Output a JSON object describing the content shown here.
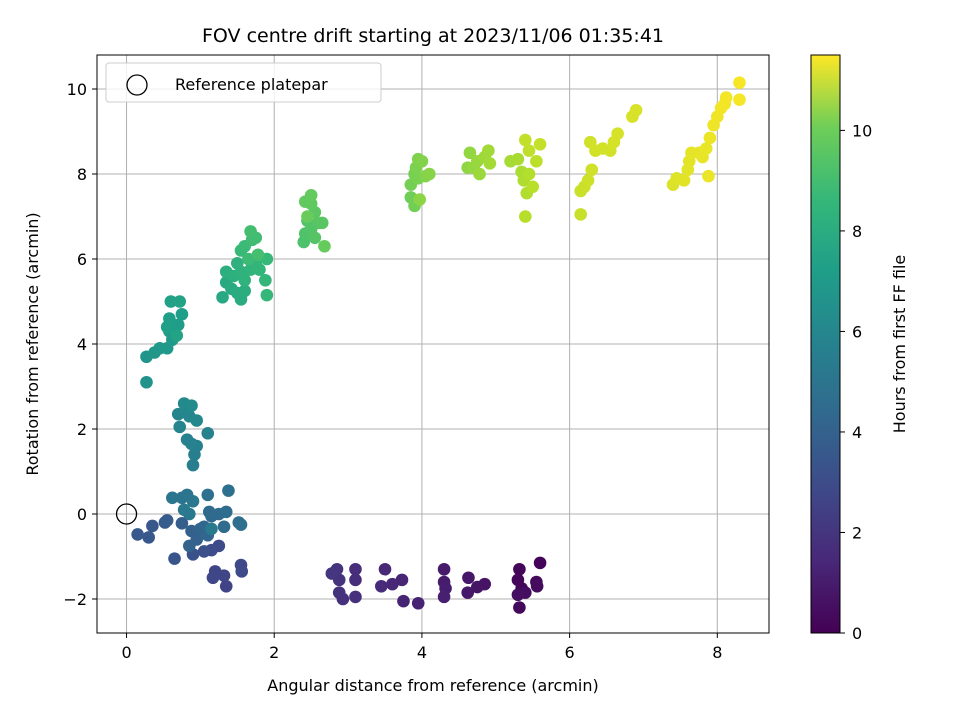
{
  "chart_data": {
    "type": "scatter",
    "title": "FOV centre drift starting at 2023/11/06 01:35:41",
    "xlabel": "Angular distance from reference (arcmin)",
    "ylabel": "Rotation from reference (arcmin)",
    "xlim": [
      -0.4,
      8.7
    ],
    "ylim": [
      -2.8,
      10.8
    ],
    "xticks": [
      0,
      2,
      4,
      6,
      8
    ],
    "yticks": [
      -2,
      0,
      2,
      4,
      6,
      8,
      10
    ],
    "grid": true,
    "legend": {
      "location": "upper-left",
      "entries": [
        "Reference platepar"
      ]
    },
    "reference_point": {
      "x": 0,
      "y": 0
    },
    "colorbar": {
      "label": "Hours from first FF file",
      "colormap": "viridis",
      "range": [
        0,
        11.5
      ],
      "ticks": [
        0,
        2,
        4,
        6,
        8,
        10
      ]
    },
    "points": [
      {
        "x": 5.6,
        "y": -1.15,
        "c": 0.1
      },
      {
        "x": 5.32,
        "y": -1.3,
        "c": 0.15
      },
      {
        "x": 5.3,
        "y": -1.55,
        "c": 0.2
      },
      {
        "x": 5.35,
        "y": -1.75,
        "c": 0.2
      },
      {
        "x": 5.32,
        "y": -2.2,
        "c": 0.25
      },
      {
        "x": 5.55,
        "y": -1.6,
        "c": 0.3
      },
      {
        "x": 5.56,
        "y": -1.7,
        "c": 0.35
      },
      {
        "x": 5.4,
        "y": -1.85,
        "c": 0.4
      },
      {
        "x": 5.3,
        "y": -1.9,
        "c": 0.45
      },
      {
        "x": 4.85,
        "y": -1.65,
        "c": 0.6
      },
      {
        "x": 4.75,
        "y": -1.72,
        "c": 0.65
      },
      {
        "x": 4.63,
        "y": -1.5,
        "c": 0.7
      },
      {
        "x": 4.62,
        "y": -1.85,
        "c": 0.75
      },
      {
        "x": 4.3,
        "y": -1.3,
        "c": 0.85
      },
      {
        "x": 4.3,
        "y": -1.6,
        "c": 0.9
      },
      {
        "x": 4.32,
        "y": -1.75,
        "c": 0.95
      },
      {
        "x": 4.3,
        "y": -1.95,
        "c": 1.0
      },
      {
        "x": 3.95,
        "y": -2.1,
        "c": 1.1
      },
      {
        "x": 3.75,
        "y": -2.05,
        "c": 1.15
      },
      {
        "x": 3.73,
        "y": -1.55,
        "c": 1.2
      },
      {
        "x": 3.6,
        "y": -1.65,
        "c": 1.25
      },
      {
        "x": 3.5,
        "y": -1.3,
        "c": 1.3
      },
      {
        "x": 3.45,
        "y": -1.7,
        "c": 1.35
      },
      {
        "x": 3.1,
        "y": -1.3,
        "c": 1.45
      },
      {
        "x": 3.1,
        "y": -1.55,
        "c": 1.5
      },
      {
        "x": 3.1,
        "y": -1.95,
        "c": 1.55
      },
      {
        "x": 2.93,
        "y": -2.0,
        "c": 1.6
      },
      {
        "x": 2.88,
        "y": -1.85,
        "c": 1.65
      },
      {
        "x": 2.88,
        "y": -1.55,
        "c": 1.7
      },
      {
        "x": 2.85,
        "y": -1.3,
        "c": 1.75
      },
      {
        "x": 2.78,
        "y": -1.4,
        "c": 1.8
      },
      {
        "x": 1.35,
        "y": -1.7,
        "c": 2.3
      },
      {
        "x": 1.32,
        "y": -1.45,
        "c": 2.35
      },
      {
        "x": 1.2,
        "y": -1.35,
        "c": 2.4
      },
      {
        "x": 1.17,
        "y": -1.5,
        "c": 2.45
      },
      {
        "x": 1.55,
        "y": -1.2,
        "c": 2.5
      },
      {
        "x": 1.56,
        "y": -1.35,
        "c": 2.55
      },
      {
        "x": 1.25,
        "y": -0.75,
        "c": 2.6
      },
      {
        "x": 1.15,
        "y": -0.85,
        "c": 2.7
      },
      {
        "x": 1.05,
        "y": -0.88,
        "c": 2.8
      },
      {
        "x": 0.9,
        "y": -0.95,
        "c": 2.9
      },
      {
        "x": 0.65,
        "y": -1.05,
        "c": 3.0
      },
      {
        "x": 0.35,
        "y": -0.28,
        "c": 3.1
      },
      {
        "x": 0.3,
        "y": -0.55,
        "c": 3.15
      },
      {
        "x": 0.15,
        "y": -0.48,
        "c": 3.2
      },
      {
        "x": 0.52,
        "y": -0.2,
        "c": 3.3
      },
      {
        "x": 0.55,
        "y": -0.15,
        "c": 3.35
      },
      {
        "x": 0.75,
        "y": -0.22,
        "c": 3.4
      },
      {
        "x": 0.88,
        "y": -0.4,
        "c": 3.5
      },
      {
        "x": 0.95,
        "y": -0.6,
        "c": 3.55
      },
      {
        "x": 0.85,
        "y": -0.75,
        "c": 3.6
      },
      {
        "x": 1.0,
        "y": -0.35,
        "c": 3.7
      },
      {
        "x": 1.1,
        "y": -0.5,
        "c": 3.75
      },
      {
        "x": 1.05,
        "y": -0.3,
        "c": 3.8
      },
      {
        "x": 1.15,
        "y": -0.05,
        "c": 3.9
      },
      {
        "x": 1.25,
        "y": 0.0,
        "c": 3.95
      },
      {
        "x": 1.12,
        "y": 0.05,
        "c": 4.0
      },
      {
        "x": 1.32,
        "y": -0.3,
        "c": 4.05
      },
      {
        "x": 1.35,
        "y": 0.05,
        "c": 4.1
      },
      {
        "x": 1.52,
        "y": -0.2,
        "c": 4.15
      },
      {
        "x": 1.55,
        "y": -0.25,
        "c": 4.2
      },
      {
        "x": 1.38,
        "y": 0.55,
        "c": 4.25
      },
      {
        "x": 1.1,
        "y": 0.45,
        "c": 4.3
      },
      {
        "x": 0.82,
        "y": 0.45,
        "c": 4.4
      },
      {
        "x": 0.75,
        "y": 0.38,
        "c": 4.45
      },
      {
        "x": 0.62,
        "y": 0.38,
        "c": 4.5
      },
      {
        "x": 0.9,
        "y": 0.3,
        "c": 4.55
      },
      {
        "x": 0.85,
        "y": 0.0,
        "c": 4.6
      },
      {
        "x": 0.78,
        "y": 0.1,
        "c": 4.65
      },
      {
        "x": 1.15,
        "y": -0.35,
        "c": 4.7
      },
      {
        "x": 0.9,
        "y": 1.15,
        "c": 4.9
      },
      {
        "x": 0.92,
        "y": 1.4,
        "c": 4.95
      },
      {
        "x": 0.95,
        "y": 1.6,
        "c": 5.0
      },
      {
        "x": 0.82,
        "y": 1.75,
        "c": 5.05
      },
      {
        "x": 0.88,
        "y": 1.65,
        "c": 5.1
      },
      {
        "x": 1.1,
        "y": 1.9,
        "c": 5.15
      },
      {
        "x": 0.72,
        "y": 2.05,
        "c": 5.2
      },
      {
        "x": 0.7,
        "y": 2.35,
        "c": 5.25
      },
      {
        "x": 0.8,
        "y": 2.4,
        "c": 5.3
      },
      {
        "x": 0.85,
        "y": 2.3,
        "c": 5.35
      },
      {
        "x": 0.95,
        "y": 2.2,
        "c": 5.4
      },
      {
        "x": 0.78,
        "y": 2.6,
        "c": 5.45
      },
      {
        "x": 0.88,
        "y": 2.55,
        "c": 5.5
      },
      {
        "x": 0.27,
        "y": 3.1,
        "c": 5.9
      },
      {
        "x": 0.27,
        "y": 3.7,
        "c": 6.0
      },
      {
        "x": 0.38,
        "y": 3.8,
        "c": 6.05
      },
      {
        "x": 0.45,
        "y": 3.9,
        "c": 6.1
      },
      {
        "x": 0.55,
        "y": 3.9,
        "c": 6.15
      },
      {
        "x": 0.62,
        "y": 4.1,
        "c": 6.2
      },
      {
        "x": 0.58,
        "y": 4.3,
        "c": 6.25
      },
      {
        "x": 0.65,
        "y": 4.35,
        "c": 6.3
      },
      {
        "x": 0.7,
        "y": 4.45,
        "c": 6.35
      },
      {
        "x": 0.75,
        "y": 4.7,
        "c": 6.4
      },
      {
        "x": 0.58,
        "y": 4.6,
        "c": 6.45
      },
      {
        "x": 0.55,
        "y": 4.4,
        "c": 6.5
      },
      {
        "x": 0.6,
        "y": 5.0,
        "c": 6.55
      },
      {
        "x": 0.72,
        "y": 5.0,
        "c": 6.6
      },
      {
        "x": 0.68,
        "y": 4.2,
        "c": 6.65
      },
      {
        "x": 1.3,
        "y": 5.1,
        "c": 6.9
      },
      {
        "x": 1.35,
        "y": 5.45,
        "c": 6.95
      },
      {
        "x": 1.42,
        "y": 5.3,
        "c": 7.0
      },
      {
        "x": 1.5,
        "y": 5.2,
        "c": 7.05
      },
      {
        "x": 1.55,
        "y": 5.05,
        "c": 7.1
      },
      {
        "x": 1.6,
        "y": 5.25,
        "c": 7.15
      },
      {
        "x": 1.35,
        "y": 5.7,
        "c": 7.2
      },
      {
        "x": 1.45,
        "y": 5.6,
        "c": 7.25
      },
      {
        "x": 1.5,
        "y": 5.9,
        "c": 7.3
      },
      {
        "x": 1.55,
        "y": 5.7,
        "c": 7.35
      },
      {
        "x": 1.6,
        "y": 5.5,
        "c": 7.4
      },
      {
        "x": 1.68,
        "y": 5.75,
        "c": 7.45
      },
      {
        "x": 1.75,
        "y": 5.9,
        "c": 7.5
      },
      {
        "x": 1.8,
        "y": 5.75,
        "c": 7.55
      },
      {
        "x": 1.88,
        "y": 5.5,
        "c": 7.6
      },
      {
        "x": 1.9,
        "y": 5.15,
        "c": 7.65
      },
      {
        "x": 1.9,
        "y": 6.0,
        "c": 7.7
      },
      {
        "x": 1.55,
        "y": 6.2,
        "c": 7.75
      },
      {
        "x": 1.6,
        "y": 6.3,
        "c": 7.8
      },
      {
        "x": 1.65,
        "y": 6.0,
        "c": 7.85
      },
      {
        "x": 1.7,
        "y": 6.45,
        "c": 7.9
      },
      {
        "x": 1.75,
        "y": 6.5,
        "c": 7.95
      },
      {
        "x": 1.68,
        "y": 6.65,
        "c": 8.0
      },
      {
        "x": 1.78,
        "y": 6.1,
        "c": 8.05
      },
      {
        "x": 2.4,
        "y": 6.4,
        "c": 8.2
      },
      {
        "x": 2.42,
        "y": 6.6,
        "c": 8.25
      },
      {
        "x": 2.45,
        "y": 6.9,
        "c": 8.3
      },
      {
        "x": 2.5,
        "y": 6.7,
        "c": 8.35
      },
      {
        "x": 2.55,
        "y": 6.5,
        "c": 8.4
      },
      {
        "x": 2.6,
        "y": 6.85,
        "c": 8.45
      },
      {
        "x": 2.65,
        "y": 6.85,
        "c": 8.5
      },
      {
        "x": 2.55,
        "y": 7.1,
        "c": 8.55
      },
      {
        "x": 2.5,
        "y": 7.3,
        "c": 8.6
      },
      {
        "x": 2.42,
        "y": 7.35,
        "c": 8.65
      },
      {
        "x": 2.5,
        "y": 7.5,
        "c": 8.7
      },
      {
        "x": 2.68,
        "y": 6.3,
        "c": 8.75
      },
      {
        "x": 2.45,
        "y": 7.0,
        "c": 8.8
      },
      {
        "x": 3.85,
        "y": 7.45,
        "c": 8.95
      },
      {
        "x": 3.9,
        "y": 7.25,
        "c": 9.0
      },
      {
        "x": 3.85,
        "y": 7.75,
        "c": 9.05
      },
      {
        "x": 3.9,
        "y": 8.0,
        "c": 9.1
      },
      {
        "x": 3.95,
        "y": 7.9,
        "c": 9.15
      },
      {
        "x": 3.92,
        "y": 8.15,
        "c": 9.2
      },
      {
        "x": 3.95,
        "y": 8.35,
        "c": 9.25
      },
      {
        "x": 4.0,
        "y": 8.3,
        "c": 9.3
      },
      {
        "x": 4.05,
        "y": 7.95,
        "c": 9.35
      },
      {
        "x": 4.1,
        "y": 8.0,
        "c": 9.4
      },
      {
        "x": 3.97,
        "y": 7.4,
        "c": 9.45
      },
      {
        "x": 4.62,
        "y": 8.15,
        "c": 9.55
      },
      {
        "x": 4.65,
        "y": 8.5,
        "c": 9.6
      },
      {
        "x": 4.7,
        "y": 8.15,
        "c": 9.65
      },
      {
        "x": 4.75,
        "y": 8.3,
        "c": 9.7
      },
      {
        "x": 4.78,
        "y": 8.0,
        "c": 9.75
      },
      {
        "x": 4.85,
        "y": 8.4,
        "c": 9.8
      },
      {
        "x": 4.9,
        "y": 8.55,
        "c": 9.85
      },
      {
        "x": 4.92,
        "y": 8.25,
        "c": 9.9
      },
      {
        "x": 5.2,
        "y": 8.3,
        "c": 9.95
      },
      {
        "x": 5.3,
        "y": 8.35,
        "c": 10.0
      },
      {
        "x": 5.35,
        "y": 8.05,
        "c": 10.05
      },
      {
        "x": 5.38,
        "y": 7.85,
        "c": 10.1
      },
      {
        "x": 5.42,
        "y": 7.55,
        "c": 10.15
      },
      {
        "x": 5.45,
        "y": 8.0,
        "c": 10.2
      },
      {
        "x": 5.4,
        "y": 7.0,
        "c": 10.25
      },
      {
        "x": 5.5,
        "y": 7.7,
        "c": 10.3
      },
      {
        "x": 5.55,
        "y": 8.3,
        "c": 10.35
      },
      {
        "x": 5.45,
        "y": 8.55,
        "c": 10.4
      },
      {
        "x": 5.4,
        "y": 8.8,
        "c": 10.45
      },
      {
        "x": 5.6,
        "y": 8.7,
        "c": 10.5
      },
      {
        "x": 6.15,
        "y": 7.05,
        "c": 10.55
      },
      {
        "x": 6.15,
        "y": 7.6,
        "c": 10.6
      },
      {
        "x": 6.2,
        "y": 7.7,
        "c": 10.62
      },
      {
        "x": 6.25,
        "y": 7.85,
        "c": 10.65
      },
      {
        "x": 6.3,
        "y": 8.1,
        "c": 10.68
      },
      {
        "x": 6.28,
        "y": 8.75,
        "c": 10.7
      },
      {
        "x": 6.35,
        "y": 8.55,
        "c": 10.72
      },
      {
        "x": 6.45,
        "y": 8.6,
        "c": 10.74
      },
      {
        "x": 6.55,
        "y": 8.55,
        "c": 10.76
      },
      {
        "x": 6.6,
        "y": 8.75,
        "c": 10.78
      },
      {
        "x": 6.65,
        "y": 8.95,
        "c": 10.8
      },
      {
        "x": 6.85,
        "y": 9.35,
        "c": 10.82
      },
      {
        "x": 6.9,
        "y": 9.5,
        "c": 10.84
      },
      {
        "x": 7.4,
        "y": 7.75,
        "c": 10.9
      },
      {
        "x": 7.45,
        "y": 7.9,
        "c": 10.95
      },
      {
        "x": 7.55,
        "y": 7.85,
        "c": 11.0
      },
      {
        "x": 7.6,
        "y": 8.1,
        "c": 11.02
      },
      {
        "x": 7.62,
        "y": 8.3,
        "c": 11.05
      },
      {
        "x": 7.65,
        "y": 8.5,
        "c": 11.08
      },
      {
        "x": 7.75,
        "y": 8.5,
        "c": 11.1
      },
      {
        "x": 7.8,
        "y": 8.4,
        "c": 11.12
      },
      {
        "x": 7.85,
        "y": 8.6,
        "c": 11.15
      },
      {
        "x": 7.88,
        "y": 7.95,
        "c": 11.17
      },
      {
        "x": 7.9,
        "y": 8.85,
        "c": 11.2
      },
      {
        "x": 7.95,
        "y": 9.15,
        "c": 11.22
      },
      {
        "x": 8.0,
        "y": 9.35,
        "c": 11.25
      },
      {
        "x": 8.05,
        "y": 9.55,
        "c": 11.28
      },
      {
        "x": 8.1,
        "y": 9.65,
        "c": 11.3
      },
      {
        "x": 8.12,
        "y": 9.8,
        "c": 11.32
      },
      {
        "x": 8.3,
        "y": 9.75,
        "c": 11.35
      },
      {
        "x": 8.3,
        "y": 10.15,
        "c": 11.4
      }
    ]
  }
}
